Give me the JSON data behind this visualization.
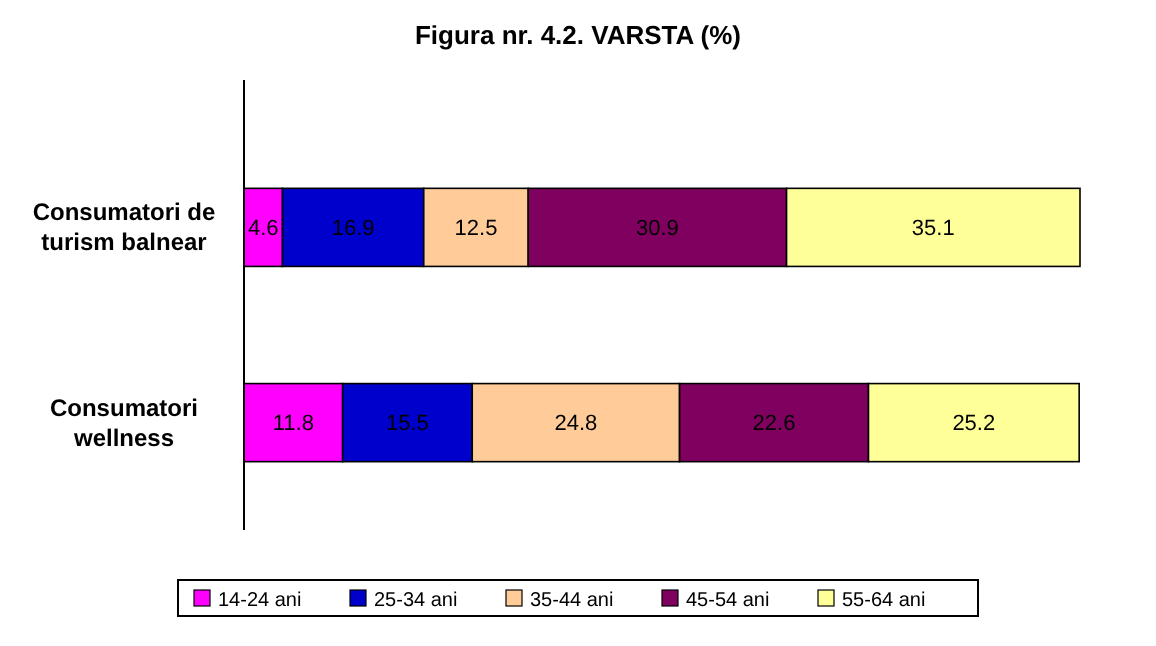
{
  "chart_data": {
    "type": "bar",
    "orientation": "horizontal",
    "stacked": true,
    "title": "Figura nr. 4.2. VARSTA (%)",
    "categories": [
      "Consumatori de turism balnear",
      "Consumatori wellness"
    ],
    "series": [
      {
        "name": "14-24 ani",
        "color": "#ff00ff",
        "values": [
          4.6,
          11.8
        ]
      },
      {
        "name": "25-34 ani",
        "color": "#0000cc",
        "values": [
          16.9,
          15.5
        ]
      },
      {
        "name": "35-44 ani",
        "color": "#ffcc99",
        "values": [
          12.5,
          24.8
        ]
      },
      {
        "name": "45-54 ani",
        "color": "#800060",
        "values": [
          30.9,
          22.6
        ]
      },
      {
        "name": "55-64 ani",
        "color": "#ffff99",
        "values": [
          35.1,
          25.2
        ]
      }
    ],
    "xlim": [
      0,
      100
    ],
    "data_labels": true,
    "legend": "bottom",
    "tick_labels": "y"
  }
}
